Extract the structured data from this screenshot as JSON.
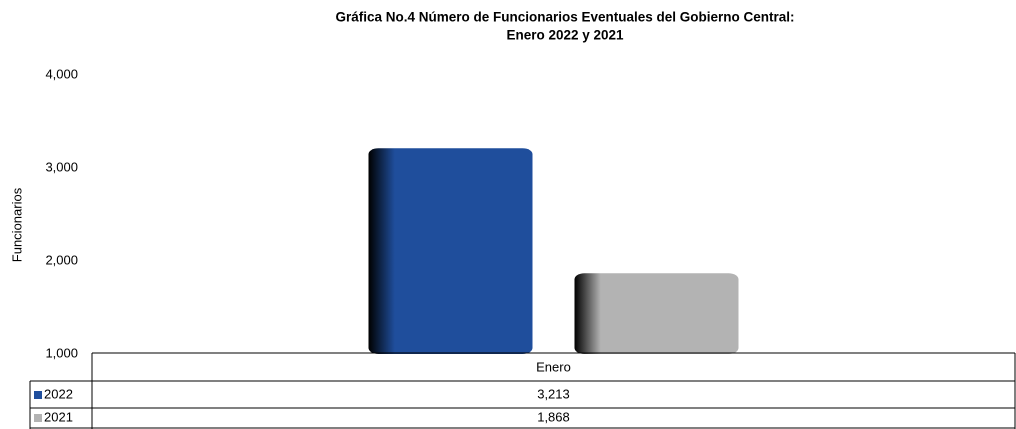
{
  "chart_data": {
    "type": "bar",
    "title": [
      "Gráfica No.4 Número de Funcionarios Eventuales del Gobierno Central:",
      "Enero 2022 y 2021"
    ],
    "y_label": "Funcionarios",
    "categories": [
      "Enero"
    ],
    "series": [
      {
        "name": "2022",
        "color": "#1f4e9c",
        "values": [
          3213
        ],
        "value_labels": [
          "3,213"
        ]
      },
      {
        "name": "2021",
        "color": "#b3b3b3",
        "values": [
          1868
        ],
        "value_labels": [
          "1,868"
        ]
      }
    ],
    "ylim": [
      1000,
      4000
    ],
    "yticks": [
      {
        "value": 1000,
        "label": "1,000"
      },
      {
        "value": 2000,
        "label": "2,000"
      },
      {
        "value": 3000,
        "label": "3,000"
      },
      {
        "value": 4000,
        "label": "4,000"
      }
    ],
    "grid": false,
    "data_table": true
  }
}
